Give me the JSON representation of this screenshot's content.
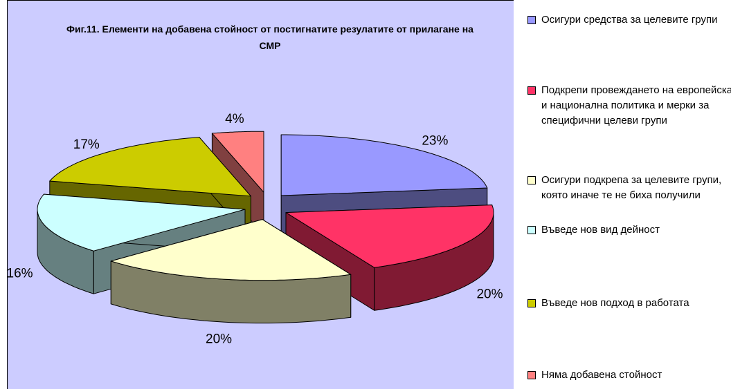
{
  "chart_data": {
    "type": "pie3d",
    "title": "Фиг.11. Елементи на добавена стойност от  постигнатите резулатите от прилагане на СМР",
    "categories": [
      "Осигури средства за целевите групи",
      "Подкрепи провеждането на европейска и национална политика и мерки за специфични целеви групи",
      "Осигури подкрепа за целевите групи, която иначе те не биха получили",
      "Въведе нов вид дейност",
      "Въведе нов подход в работата",
      "Няма добавена стойност"
    ],
    "values": [
      23,
      20,
      20,
      16,
      17,
      4
    ],
    "value_labels": [
      "23%",
      "20%",
      "20%",
      "16%",
      "17%",
      "4%"
    ],
    "colors": [
      "#9999ff",
      "#ff3366",
      "#ffffcc",
      "#ccffff",
      "#cccc00",
      "#ff8080"
    ]
  }
}
